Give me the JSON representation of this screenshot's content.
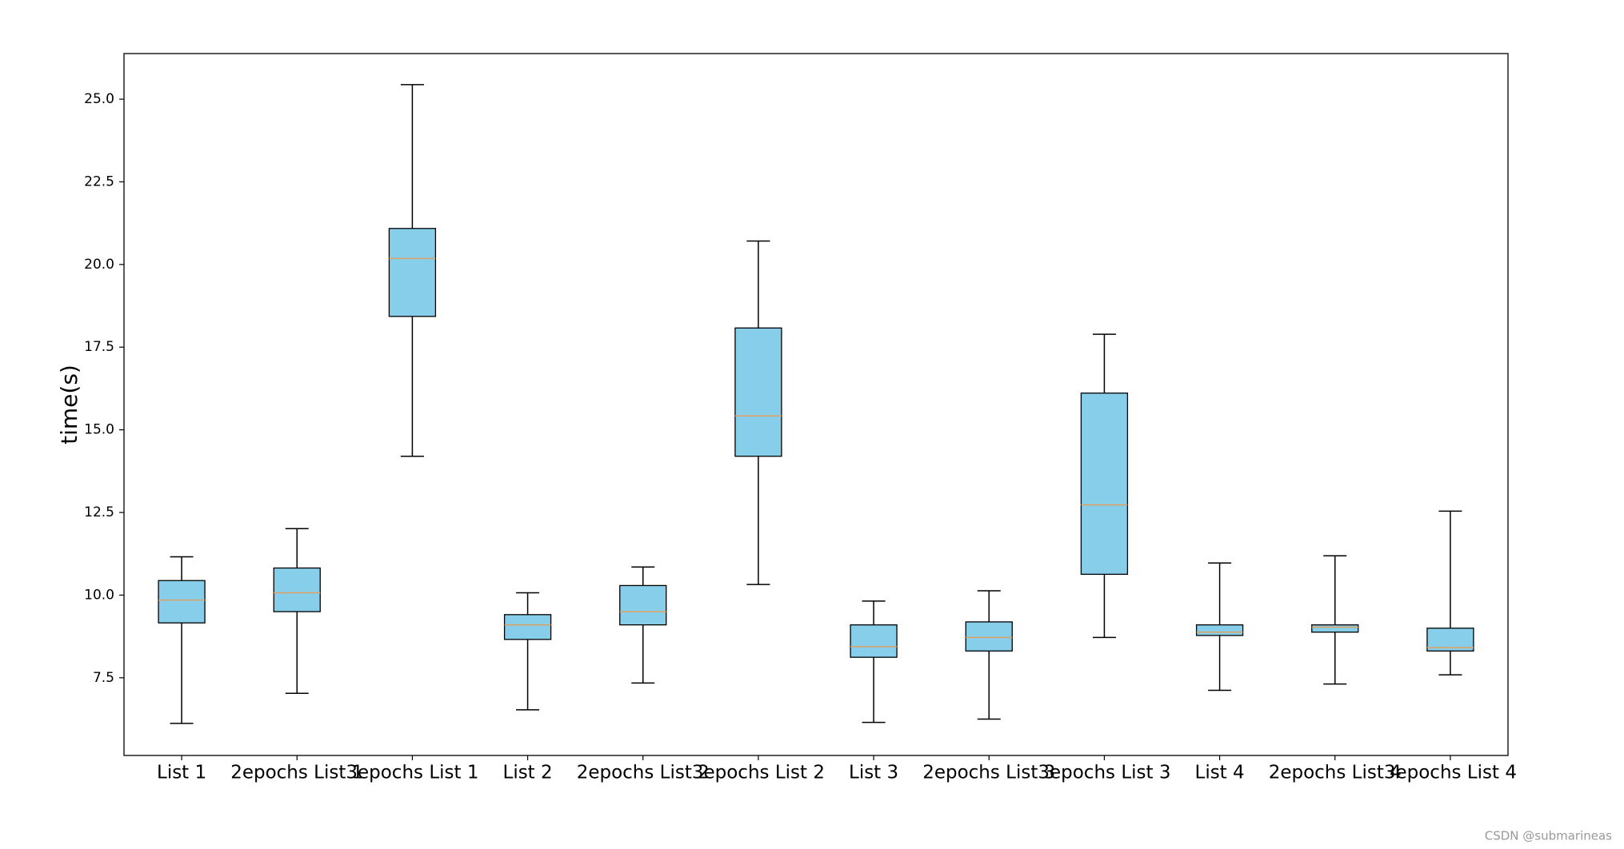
{
  "chart_data": {
    "type": "box",
    "ylabel": "time(s)",
    "categories": [
      "List 1",
      "2epochs List 1",
      "3epochs List 1",
      "List 2",
      "2epochs List 2",
      "3epochs List 2",
      "List 3",
      "2epochs List 3",
      "3epochs List 3",
      "List 4",
      "2epochs List 4",
      "3epochs List 4"
    ],
    "whisker_low": [
      6.12,
      7.03,
      14.2,
      6.53,
      7.34,
      10.32,
      6.15,
      6.25,
      8.72,
      7.12,
      7.31,
      7.59
    ],
    "q1": [
      9.16,
      9.5,
      18.43,
      8.66,
      9.1,
      14.2,
      8.12,
      8.31,
      10.63,
      8.78,
      8.88,
      8.31
    ],
    "median": [
      9.85,
      10.07,
      20.18,
      9.1,
      9.5,
      15.42,
      8.44,
      8.72,
      12.73,
      8.88,
      9.03,
      8.41
    ],
    "q3": [
      10.44,
      10.82,
      21.09,
      9.41,
      10.29,
      18.08,
      9.1,
      9.19,
      16.11,
      9.1,
      9.1,
      9.0
    ],
    "whisker_high": [
      11.16,
      12.01,
      25.44,
      10.07,
      10.85,
      20.71,
      9.82,
      10.13,
      17.89,
      10.97,
      11.19,
      12.54
    ],
    "color": "#87ceeb",
    "median_color": "#e0a060",
    "ylim": [
      5.15,
      26.38
    ],
    "yticks": [
      {
        "value": 7.5,
        "label": "7.5"
      },
      {
        "value": 10,
        "label": "10.0"
      },
      {
        "value": 12.5,
        "label": "12.5"
      },
      {
        "value": 15,
        "label": "15.0"
      },
      {
        "value": 17.5,
        "label": "17.5"
      },
      {
        "value": 20,
        "label": "20.0"
      },
      {
        "value": 22.5,
        "label": "22.5"
      },
      {
        "value": 25,
        "label": "25.0"
      }
    ],
    "grid": false
  },
  "watermark": "CSDN @submarineas"
}
